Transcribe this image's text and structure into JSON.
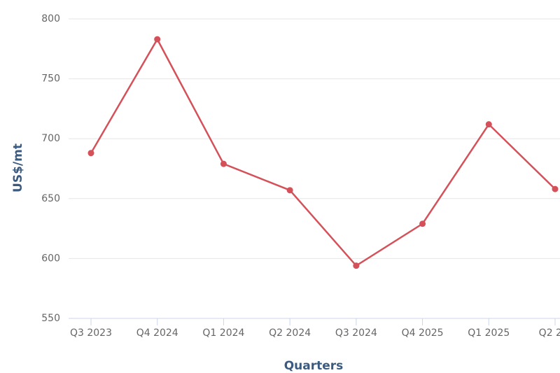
{
  "chart_data": {
    "type": "line",
    "x_label": "Quarters",
    "y_label": "US$/mt",
    "categories": [
      "Q3 2023",
      "Q4 2024",
      "Q1 2024",
      "Q2 2024",
      "Q3 2024",
      "Q4 2025",
      "Q1 2025",
      "Q2 2..."
    ],
    "series": [
      {
        "name": "US$/mt",
        "color": "#d4515a",
        "values": [
          688,
          783,
          679,
          657,
          594,
          629,
          712,
          658
        ]
      }
    ],
    "ylim": [
      550,
      800
    ],
    "yticks": [
      550,
      600,
      650,
      700,
      750,
      800
    ],
    "grid": true
  }
}
